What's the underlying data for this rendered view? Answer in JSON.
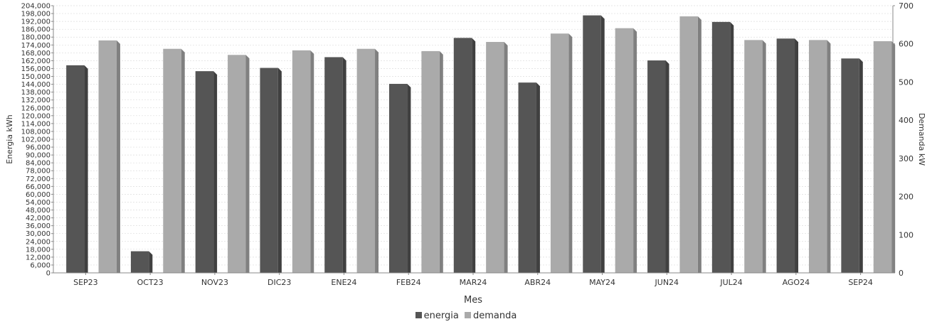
{
  "chart_data": {
    "type": "bar",
    "xlabel": "Mes",
    "ylabel_left": "Energia kWh",
    "ylabel_right": "Demanda kW",
    "ylim_left": [
      0,
      204000
    ],
    "ylim_right": [
      0,
      700
    ],
    "left_tick_step": 6000,
    "right_tick_step": 100,
    "grid": true,
    "legend_position": "bottom-center",
    "categories": [
      "SEP23",
      "OCT23",
      "NOV23",
      "DIC23",
      "ENE24",
      "FEB24",
      "MAR24",
      "ABR24",
      "MAY24",
      "JUN24",
      "JUL24",
      "AGO24",
      "SEP24"
    ],
    "series": [
      {
        "name": "energia",
        "axis": "left",
        "color": "#555555",
        "values": [
          158500,
          16500,
          154000,
          156500,
          164700,
          144300,
          179400,
          145300,
          196600,
          162200,
          191600,
          178900,
          163700
        ]
      },
      {
        "name": "demanda",
        "axis": "right",
        "color": "#aaaaaa",
        "values": [
          609,
          587,
          571,
          583,
          587,
          581,
          605,
          627,
          641,
          672,
          610,
          610,
          607
        ]
      }
    ]
  }
}
